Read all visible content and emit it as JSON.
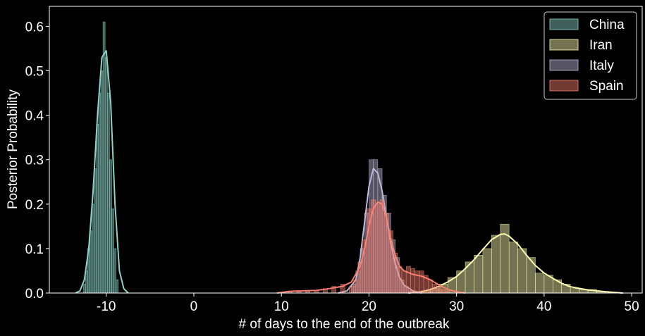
{
  "chart_data": {
    "type": "histogram-kde",
    "xlabel": "# of days to the end of the outbreak",
    "ylabel": "Posterior Probability",
    "xlim": [
      -16.5,
      51.2
    ],
    "ylim": [
      0,
      0.645
    ],
    "xticks": [
      -10,
      0,
      10,
      20,
      30,
      40,
      50
    ],
    "yticks": [
      0.0,
      0.1,
      0.2,
      0.3,
      0.4,
      0.5,
      0.6
    ],
    "ytick_labels": [
      "0.0",
      "0.1",
      "0.2",
      "0.3",
      "0.4",
      "0.5",
      "0.6"
    ],
    "grid": false,
    "legend_position": "top-right",
    "series": [
      {
        "name": "China",
        "color": "#8dd3c7",
        "bin_width": 0.25,
        "bins_x": [
          -12.5,
          -12.25,
          -12.0,
          -11.75,
          -11.5,
          -11.25,
          -11.0,
          -10.75,
          -10.5,
          -10.25,
          -10.0,
          -9.75,
          -9.5,
          -9.25,
          -9.0,
          -8.75
        ],
        "bins_y": [
          0.02,
          0.05,
          0.1,
          0.14,
          0.2,
          0.28,
          0.38,
          0.45,
          0.5,
          0.61,
          0.53,
          0.45,
          0.3,
          0.19,
          0.1,
          0.03
        ],
        "kde_x": [
          -13.5,
          -13.0,
          -12.5,
          -12.0,
          -11.5,
          -11.0,
          -10.5,
          -10.0,
          -9.5,
          -9.0,
          -8.5,
          -8.0,
          -7.5
        ],
        "kde_y": [
          0.0,
          0.005,
          0.03,
          0.1,
          0.23,
          0.4,
          0.53,
          0.545,
          0.43,
          0.2,
          0.05,
          0.01,
          0.0
        ]
      },
      {
        "name": "Iran",
        "color": "#ffffb3",
        "bin_width": 1.0,
        "bins_x": [
          26.5,
          27.5,
          28.5,
          29.5,
          30.5,
          31.5,
          32.5,
          33.5,
          34.5,
          35.5,
          36.5,
          37.5,
          38.5,
          39.5,
          40.5,
          41.5,
          42.5,
          43.5,
          44.5,
          45.5,
          46.5
        ],
        "bins_y": [
          0.005,
          0.01,
          0.02,
          0.035,
          0.05,
          0.07,
          0.085,
          0.1,
          0.13,
          0.155,
          0.115,
          0.1,
          0.08,
          0.045,
          0.04,
          0.03,
          0.02,
          0.01,
          0.008,
          0.008,
          0.004
        ],
        "kde_x": [
          24.5,
          26.0,
          27.0,
          28.0,
          29.0,
          30.0,
          31.0,
          32.0,
          33.0,
          34.0,
          35.0,
          35.5,
          36.0,
          37.0,
          38.0,
          39.0,
          40.0,
          41.0,
          42.0,
          43.0,
          45.0,
          47.0,
          49.0
        ],
        "kde_y": [
          0.0,
          0.003,
          0.008,
          0.015,
          0.025,
          0.037,
          0.055,
          0.075,
          0.098,
          0.12,
          0.132,
          0.133,
          0.128,
          0.11,
          0.085,
          0.062,
          0.045,
          0.033,
          0.022,
          0.014,
          0.007,
          0.003,
          0.0
        ]
      },
      {
        "name": "Italy",
        "color": "#bebada",
        "bin_width": 0.5,
        "bins_x": [
          18.25,
          18.75,
          19.25,
          19.75,
          20.25,
          20.75,
          21.25,
          21.75,
          22.25,
          22.75,
          23.25,
          23.75,
          24.25,
          24.75
        ],
        "bins_y": [
          0.02,
          0.05,
          0.1,
          0.18,
          0.3,
          0.3,
          0.28,
          0.22,
          0.18,
          0.12,
          0.08,
          0.03,
          0.015,
          0.005
        ],
        "kde_x": [
          16.5,
          17.5,
          18.5,
          19.0,
          19.5,
          20.0,
          20.5,
          21.0,
          21.5,
          22.0,
          22.5,
          23.0,
          23.5,
          24.0,
          25.0,
          26.0
        ],
        "kde_y": [
          0.0,
          0.005,
          0.03,
          0.08,
          0.16,
          0.24,
          0.28,
          0.27,
          0.23,
          0.17,
          0.11,
          0.065,
          0.035,
          0.018,
          0.005,
          0.0
        ]
      },
      {
        "name": "Spain",
        "color": "#fb8072",
        "bin_width": 0.5,
        "bins_x": [
          10.0,
          11.0,
          12.0,
          13.0,
          14.0,
          15.0,
          16.0,
          17.0,
          18.0,
          18.5,
          19.0,
          19.5,
          20.0,
          20.5,
          21.0,
          21.5,
          22.0,
          22.5,
          23.0,
          23.5,
          24.0,
          24.5,
          25.0,
          25.5,
          26.0,
          26.5,
          27.0,
          27.5,
          28.0,
          28.5,
          29.0
        ],
        "bins_y": [
          0.002,
          0.004,
          0.006,
          0.004,
          0.006,
          0.01,
          0.015,
          0.02,
          0.015,
          0.03,
          0.07,
          0.12,
          0.19,
          0.21,
          0.2,
          0.21,
          0.18,
          0.14,
          0.09,
          0.06,
          0.05,
          0.06,
          0.055,
          0.05,
          0.05,
          0.04,
          0.03,
          0.02,
          0.015,
          0.008,
          0.004
        ],
        "kde_x": [
          9.5,
          11.0,
          12.5,
          14.0,
          15.5,
          17.0,
          18.0,
          19.0,
          19.5,
          20.0,
          20.5,
          21.0,
          21.5,
          22.0,
          22.5,
          23.0,
          23.5,
          24.0,
          25.0,
          26.0,
          27.0,
          28.0,
          29.0,
          30.0,
          31.0
        ],
        "kde_y": [
          0.0,
          0.004,
          0.005,
          0.006,
          0.01,
          0.015,
          0.025,
          0.06,
          0.1,
          0.15,
          0.19,
          0.205,
          0.2,
          0.17,
          0.12,
          0.085,
          0.06,
          0.05,
          0.042,
          0.038,
          0.03,
          0.018,
          0.008,
          0.003,
          0.0
        ]
      }
    ]
  }
}
